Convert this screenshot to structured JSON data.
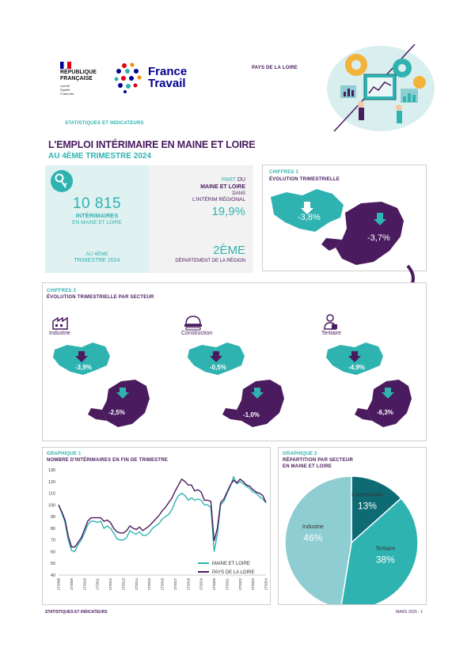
{
  "header": {
    "rf_lines": [
      "RÉPUBLIQUE",
      "FRANÇAISE"
    ],
    "rf_motto": [
      "Liberté",
      "Égalité",
      "Fraternité"
    ],
    "ft_logo": [
      "France",
      "Travail"
    ],
    "region": "PAYS DE LA LOIRE",
    "section": "STATISTIQUES ET INDICATEURS"
  },
  "title": {
    "main": "L'EMPLOI INTÉRIMAIRE EN MAINE ET LOIRE",
    "sub": "AU 4ÈME TRIMESTRE 2024"
  },
  "kpi": {
    "count": "10 815",
    "count_label": "INTÉRIMAIRES",
    "count_sub": "EN MAINE ET LOIRE",
    "period_l1": "AU 4ÈME",
    "period_l2": "TRIMESTRE 2024",
    "share_l1a": "PART",
    "share_l1b": "DU",
    "share_l2": "MAINE ET LOIRE",
    "share_l3": "DANS",
    "share_l4": "L'INTÉRIM RÉGIONAL",
    "share_value": "19,9%",
    "rank_value": "2ÈME",
    "rank_label": "DÉPARTEMENT DE LA RÉGION"
  },
  "fig1": {
    "tag": "CHIFFRES 1",
    "title": "ÉVOLUTION TRIMESTRIELLE",
    "dept_value": "-3,8%",
    "region_value": "-3,7%"
  },
  "fig2": {
    "tag": "CHIFFRES 2",
    "title": "ÉVOLUTION TRIMESTRIELLE PAR SECTEUR",
    "sectors": [
      {
        "label": "Industrie",
        "dept": "-3,9%",
        "region": "-2,5%",
        "icon": "factory-icon"
      },
      {
        "label": "Construction",
        "dept": "-0,5%",
        "region": "-1,0%",
        "icon": "helmet-icon"
      },
      {
        "label": "Tertiaire",
        "dept": "-4,9%",
        "region": "-6,3%",
        "icon": "office-worker-icon"
      }
    ]
  },
  "graph1": {
    "tag": "GRAPHIQUE 1",
    "title": "NOMBRE D'INTÉRIMAIRES EN FIN DE TRIMESTRE"
  },
  "graph2": {
    "tag": "GRAPHIQUE 2",
    "title_l1": "RÉPARTITION PAR SECTEUR",
    "title_l2": "EN MAINE ET LOIRE"
  },
  "footer": {
    "left": "STATISTIQUES ET INDICATEURS",
    "right": "MARS 2025 - 1"
  },
  "colors": {
    "teal": "#2fb3b1",
    "purple": "#4a1b5e",
    "light_teal": "#8ecdd1",
    "dark_teal": "#0f6b73"
  },
  "chart_data": [
    {
      "type": "line",
      "title": "NOMBRE D'INTÉRIMAIRES EN FIN DE TRIMESTRE",
      "x_ticks": [
        "1T2008",
        "1T2009",
        "1T2010",
        "1T2011",
        "1T2012",
        "1T2013",
        "1T2014",
        "1T2015",
        "1T2016",
        "1T2017",
        "1T2018",
        "1T2019",
        "1T2020",
        "1T2021",
        "1T2022",
        "1T2023",
        "1T2024"
      ],
      "ylim": [
        40,
        130
      ],
      "y_ticks": [
        40,
        50,
        60,
        70,
        80,
        90,
        100,
        110,
        120,
        130
      ],
      "legend_position": "bottom-right",
      "series": [
        {
          "name": "MAINE ET LOIRE",
          "color": "#2fb3b1",
          "values": [
            100,
            93,
            85,
            70,
            61,
            60,
            66,
            70,
            76,
            83,
            86,
            86,
            85,
            86,
            80,
            82,
            80,
            76,
            71,
            70,
            70,
            72,
            78,
            76,
            75,
            77,
            74,
            74,
            76,
            80,
            82,
            84,
            88,
            90,
            92,
            96,
            103,
            108,
            110,
            108,
            104,
            106,
            104,
            105,
            104,
            100,
            100,
            98,
            60,
            75,
            100,
            103,
            110,
            116,
            124,
            118,
            120,
            118,
            116,
            114,
            111,
            110,
            107,
            105,
            102
          ]
        },
        {
          "name": "PAYS DE LA LOIRE",
          "color": "#4a1b5e",
          "values": [
            100,
            94,
            87,
            73,
            64,
            64,
            68,
            72,
            79,
            86,
            89,
            89,
            89,
            89,
            86,
            87,
            85,
            80,
            77,
            76,
            76,
            78,
            82,
            80,
            79,
            81,
            78,
            80,
            82,
            85,
            88,
            91,
            95,
            98,
            102,
            106,
            112,
            117,
            122,
            120,
            117,
            117,
            112,
            113,
            111,
            104,
            104,
            103,
            69,
            80,
            102,
            105,
            111,
            117,
            121,
            119,
            122,
            120,
            117,
            116,
            113,
            111,
            110,
            108,
            102
          ]
        }
      ]
    },
    {
      "type": "pie",
      "title": "RÉPARTITION PAR SECTEUR EN MAINE ET LOIRE",
      "slices": [
        {
          "label": "Construction",
          "value": 13,
          "display": "13%",
          "color": "#0f6b73"
        },
        {
          "label": "Tertiaire",
          "value": 38,
          "display": "38%",
          "color": "#2fb3b1"
        },
        {
          "label": "Industrie",
          "value": 46,
          "display": "46%",
          "color": "#8ecdd1"
        }
      ]
    }
  ]
}
